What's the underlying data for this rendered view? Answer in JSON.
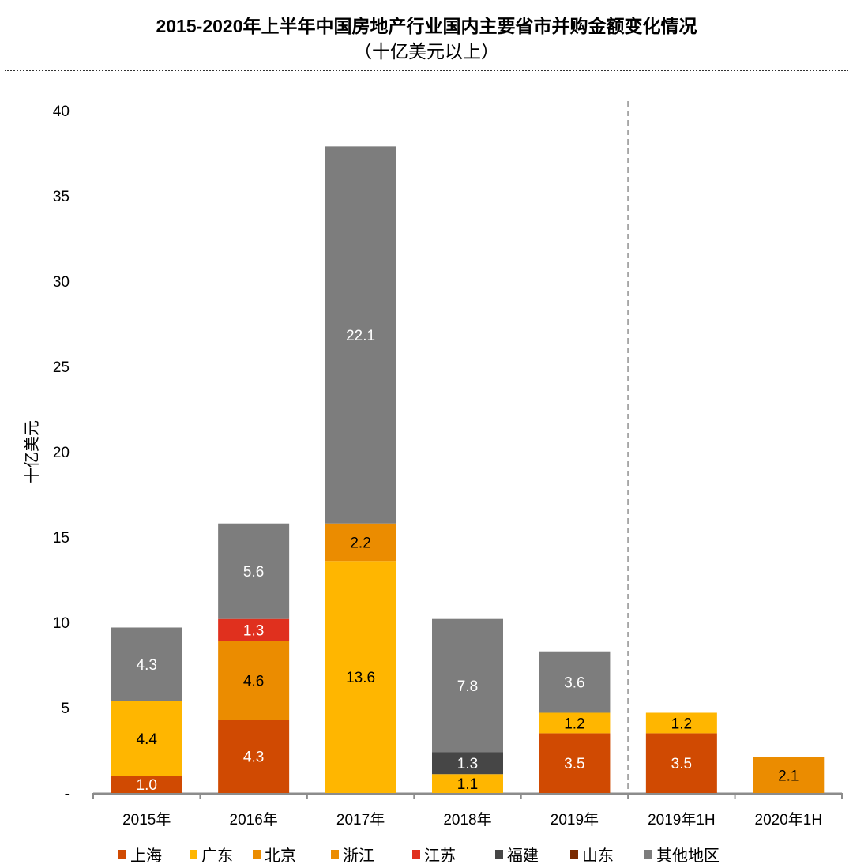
{
  "chart_data": {
    "type": "bar",
    "stacked": true,
    "title": "2015-2020年上半年中国房地产行业国内主要省市并购金额变化情况",
    "subtitle": "（十亿美元以上）",
    "ylabel": "十亿美元",
    "xlabel": "",
    "ylim": [
      0,
      40
    ],
    "yticks": [
      0,
      5,
      10,
      15,
      20,
      25,
      30,
      35,
      40
    ],
    "ytick_labels": [
      "-",
      "5",
      "10",
      "15",
      "20",
      "25",
      "30",
      "35",
      "40"
    ],
    "grid": false,
    "legend_position": "bottom",
    "divider_after_category": "2019年",
    "categories": [
      "2015年",
      "2016年",
      "2017年",
      "2018年",
      "2019年",
      "2019年1H",
      "2020年1H"
    ],
    "series": [
      {
        "name": "上海",
        "color": "#D04A02",
        "label_color": "#ffffff",
        "values": [
          1.0,
          4.3,
          null,
          null,
          3.5,
          3.5,
          null
        ]
      },
      {
        "name": "广东",
        "color": "#FFB600",
        "label_color": "#000000",
        "values": [
          4.4,
          null,
          13.6,
          1.1,
          1.2,
          1.2,
          null
        ]
      },
      {
        "name": "北京",
        "color": "#EB8C00",
        "label_color": "#000000",
        "values": [
          null,
          4.6,
          2.2,
          null,
          null,
          null,
          2.1
        ]
      },
      {
        "name": "浙江",
        "color": "#EB8C00",
        "label_color": "#000000",
        "values": [
          null,
          null,
          null,
          null,
          null,
          null,
          null
        ]
      },
      {
        "name": "江苏",
        "color": "#E0301E",
        "label_color": "#ffffff",
        "values": [
          null,
          1.3,
          null,
          null,
          null,
          null,
          null
        ]
      },
      {
        "name": "福建",
        "color": "#464646",
        "label_color": "#ffffff",
        "values": [
          null,
          null,
          null,
          1.3,
          null,
          null,
          null
        ]
      },
      {
        "name": "山东",
        "color": "#7A2A00",
        "label_color": "#ffffff",
        "values": [
          null,
          null,
          null,
          null,
          null,
          null,
          null
        ]
      },
      {
        "name": "其他地区",
        "color": "#7D7D7D",
        "label_color": "#ffffff",
        "values": [
          4.3,
          5.6,
          22.1,
          7.8,
          3.6,
          null,
          null
        ]
      }
    ]
  }
}
